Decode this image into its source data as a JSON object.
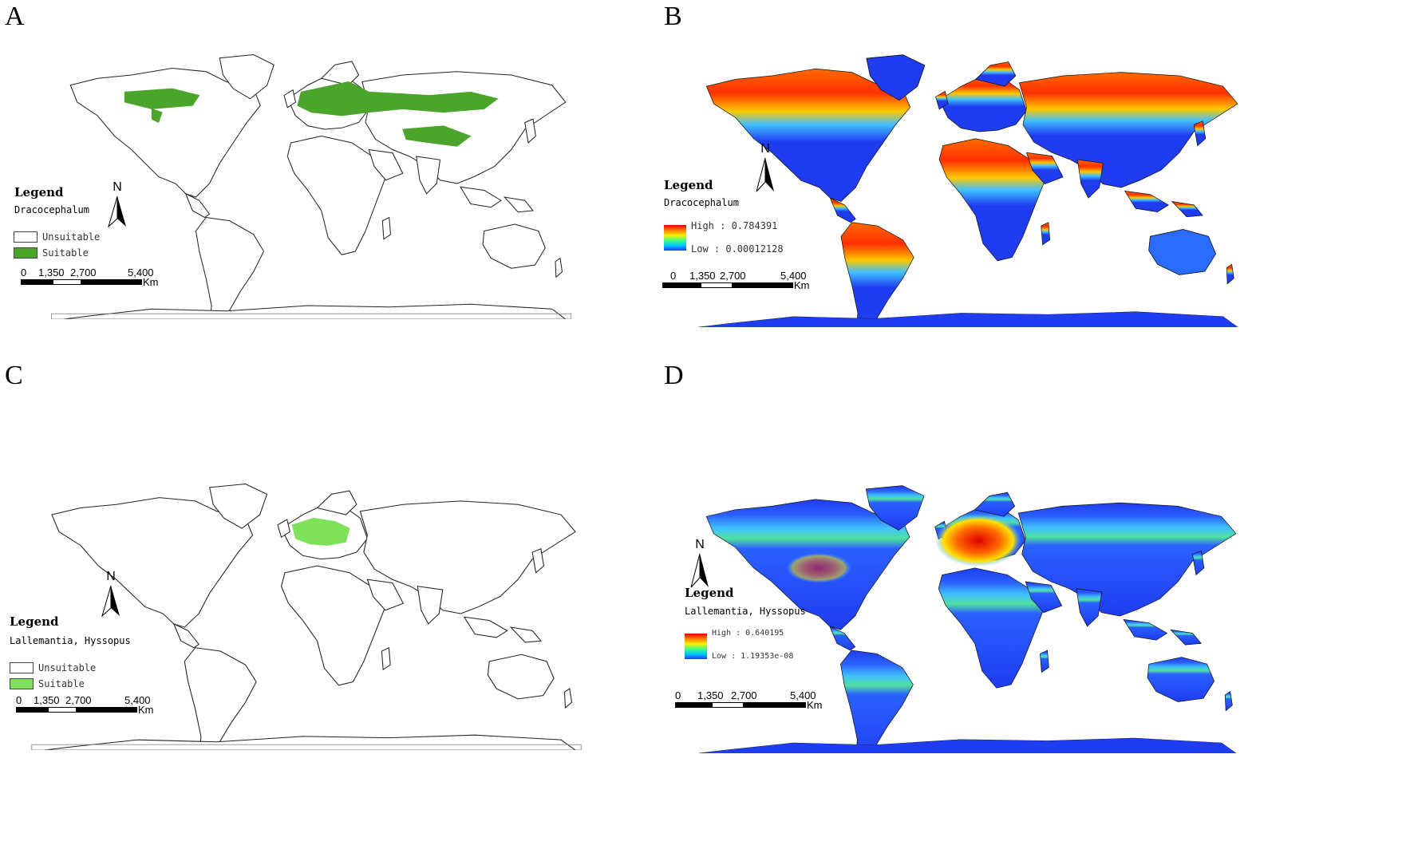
{
  "panels": [
    {
      "letter": "A",
      "mode": "binary",
      "legend_title": "Legend",
      "species": "Dracocephalum",
      "unsuitable_label": "Unsuitable",
      "suitable_label": "Suitable",
      "suitable_color": "#4aa52a",
      "north_label": "N",
      "scale": {
        "ticks": [
          "0",
          "1,350",
          "2,700",
          "5,400"
        ],
        "unit": "Km"
      }
    },
    {
      "letter": "B",
      "mode": "continuous",
      "legend_title": "Legend",
      "species": "Dracocephalum",
      "high_label": "High : 0.784391",
      "low_label": "Low : 0.00012128",
      "north_label": "N",
      "scale": {
        "ticks": [
          "0",
          "1,350",
          "2,700",
          "5,400"
        ],
        "unit": "Km"
      }
    },
    {
      "letter": "C",
      "mode": "binary",
      "legend_title": "Legend",
      "species": "Lallemantia, Hyssopus",
      "unsuitable_label": "Unsuitable",
      "suitable_label": "Suitable",
      "suitable_color": "#7fe05a",
      "north_label": "N",
      "scale": {
        "ticks": [
          "0",
          "1,350",
          "2,700",
          "5,400"
        ],
        "unit": "Km"
      }
    },
    {
      "letter": "D",
      "mode": "continuous",
      "legend_title": "Legend",
      "species": "Lallemantia, Hyssopus",
      "high_label": "High : 0.640195",
      "low_label": "Low : 1.19353e-08",
      "north_label": "N",
      "scale": {
        "ticks": [
          "0",
          "1,350",
          "2,700",
          "5,400"
        ],
        "unit": "Km"
      }
    }
  ],
  "colors": {
    "ocean_blue": "#1f3cf0",
    "high": "#e00000",
    "mid": "#ffe000",
    "low": "#1e3cff"
  }
}
